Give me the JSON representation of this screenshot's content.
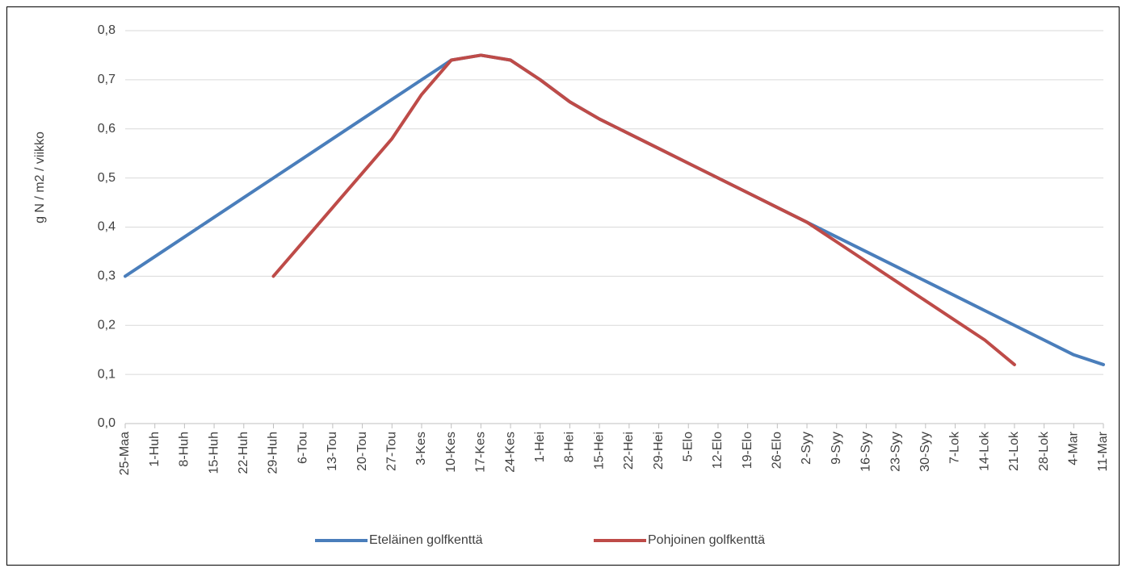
{
  "chart_data": {
    "type": "line",
    "y_label": "g N / m2 / viikko",
    "categories": [
      "25-Maa",
      "1-Huh",
      "8-Huh",
      "15-Huh",
      "22-Huh",
      "29-Huh",
      "6-Tou",
      "13-Tou",
      "20-Tou",
      "27-Tou",
      "3-Kes",
      "10-Kes",
      "17-Kes",
      "24-Kes",
      "1-Hei",
      "8-Hei",
      "15-Hei",
      "22-Hei",
      "29-Hei",
      "5-Elo",
      "12-Elo",
      "19-Elo",
      "26-Elo",
      "2-Syy",
      "9-Syy",
      "16-Syy",
      "23-Syy",
      "30-Syy",
      "7-Lok",
      "14-Lok",
      "21-Lok",
      "28-Lok",
      "4-Mar",
      "11-Mar"
    ],
    "series": [
      {
        "name": "Eteläinen golfkenttä",
        "color": "#4a7ebb",
        "values": [
          0.3,
          0.34,
          0.38,
          0.42,
          0.46,
          0.5,
          0.54,
          0.58,
          0.62,
          0.66,
          0.7,
          0.74,
          0.75,
          0.74,
          0.7,
          0.655,
          0.62,
          0.59,
          0.56,
          0.53,
          0.5,
          0.47,
          0.44,
          0.41,
          0.38,
          0.35,
          0.32,
          0.29,
          0.26,
          0.23,
          0.2,
          0.17,
          0.14,
          0.12
        ]
      },
      {
        "name": "Pohjoinen golfkenttä",
        "color": "#be4b48",
        "values": [
          null,
          null,
          null,
          null,
          null,
          0.3,
          0.37,
          0.44,
          0.51,
          0.58,
          0.67,
          0.74,
          0.75,
          0.74,
          0.7,
          0.655,
          0.62,
          0.59,
          0.56,
          0.53,
          0.5,
          0.47,
          0.44,
          0.41,
          0.37,
          0.33,
          0.29,
          0.25,
          0.21,
          0.17,
          0.12,
          null,
          null,
          null
        ]
      }
    ],
    "ylim": [
      0,
      0.8
    ],
    "yticks": [
      {
        "value": 0,
        "label": "0,0"
      },
      {
        "value": 0.1,
        "label": "0,1"
      },
      {
        "value": 0.2,
        "label": "0,2"
      },
      {
        "value": 0.3,
        "label": "0,3"
      },
      {
        "value": 0.4,
        "label": "0,4"
      },
      {
        "value": 0.5,
        "label": "0,5"
      },
      {
        "value": 0.6,
        "label": "0,6"
      },
      {
        "value": 0.7,
        "label": "0,7"
      },
      {
        "value": 0.8,
        "label": "0,8"
      }
    ],
    "grid": true,
    "legend": "bottom"
  }
}
